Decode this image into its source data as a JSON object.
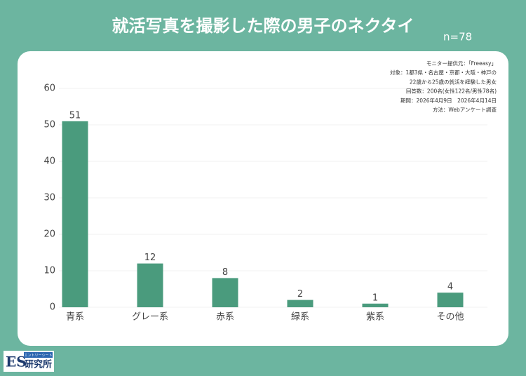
{
  "chart_data": {
    "type": "bar",
    "title": "就活写真を撮影した際の男子のネクタイ",
    "subtitle": "n=78",
    "categories": [
      "青系",
      "グレー系",
      "赤系",
      "緑系",
      "紫系",
      "その他"
    ],
    "values": [
      51,
      12,
      8,
      2,
      1,
      4
    ],
    "color": "#4a9b7d",
    "ylim": [
      0,
      60
    ],
    "yticks": [
      0,
      10,
      20,
      30,
      40,
      50,
      60
    ],
    "grid": true,
    "notes": [
      "モニター提供元：「Freeasy」",
      "対象：1都3県・名古屋・京都・大阪・神戸の",
      "22歳から25歳の就活を経験した男女",
      "回答数：200名(女性122名/男性78名)",
      "期間：2026年4月9日　2026年4月14日",
      "方法：Webアンケート調査"
    ]
  },
  "logo": {
    "main": "ES",
    "sub": "研究所",
    "tag": "エントリーシート"
  }
}
